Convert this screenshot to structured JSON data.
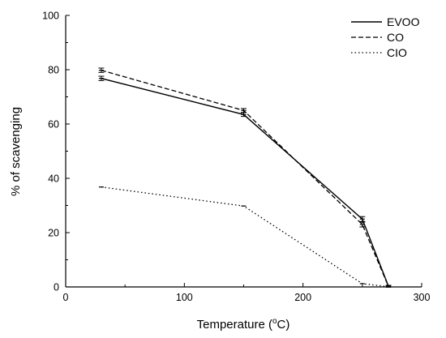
{
  "chart_data": {
    "type": "line",
    "xlabel_main": "Temperature (",
    "xlabel_sup": "o",
    "xlabel_end": "C)",
    "ylabel": "% of scavenging",
    "xlim": [
      0,
      300
    ],
    "ylim": [
      0,
      100
    ],
    "x_ticks": [
      0,
      100,
      200,
      300
    ],
    "y_ticks": [
      0,
      20,
      40,
      60,
      80,
      100
    ],
    "grid": false,
    "legend_position": "top-right",
    "series": [
      {
        "name": "EVOO",
        "style": "solid",
        "x": [
          30,
          150,
          250,
          272
        ],
        "y": [
          76.8,
          63.5,
          25.0,
          0.3
        ],
        "err": [
          0.8,
          0.7,
          0.9,
          0.3
        ]
      },
      {
        "name": "CO",
        "style": "dashed",
        "x": [
          30,
          150,
          250,
          272
        ],
        "y": [
          79.8,
          65.0,
          23.0,
          0.2
        ],
        "err": [
          0.8,
          0.7,
          0.9,
          0.3
        ]
      },
      {
        "name": "CIO",
        "style": "dotted",
        "x": [
          30,
          150,
          250,
          272
        ],
        "y": [
          36.8,
          29.8,
          1.2,
          0.1
        ],
        "err": [
          0,
          0,
          0,
          0
        ]
      }
    ]
  }
}
